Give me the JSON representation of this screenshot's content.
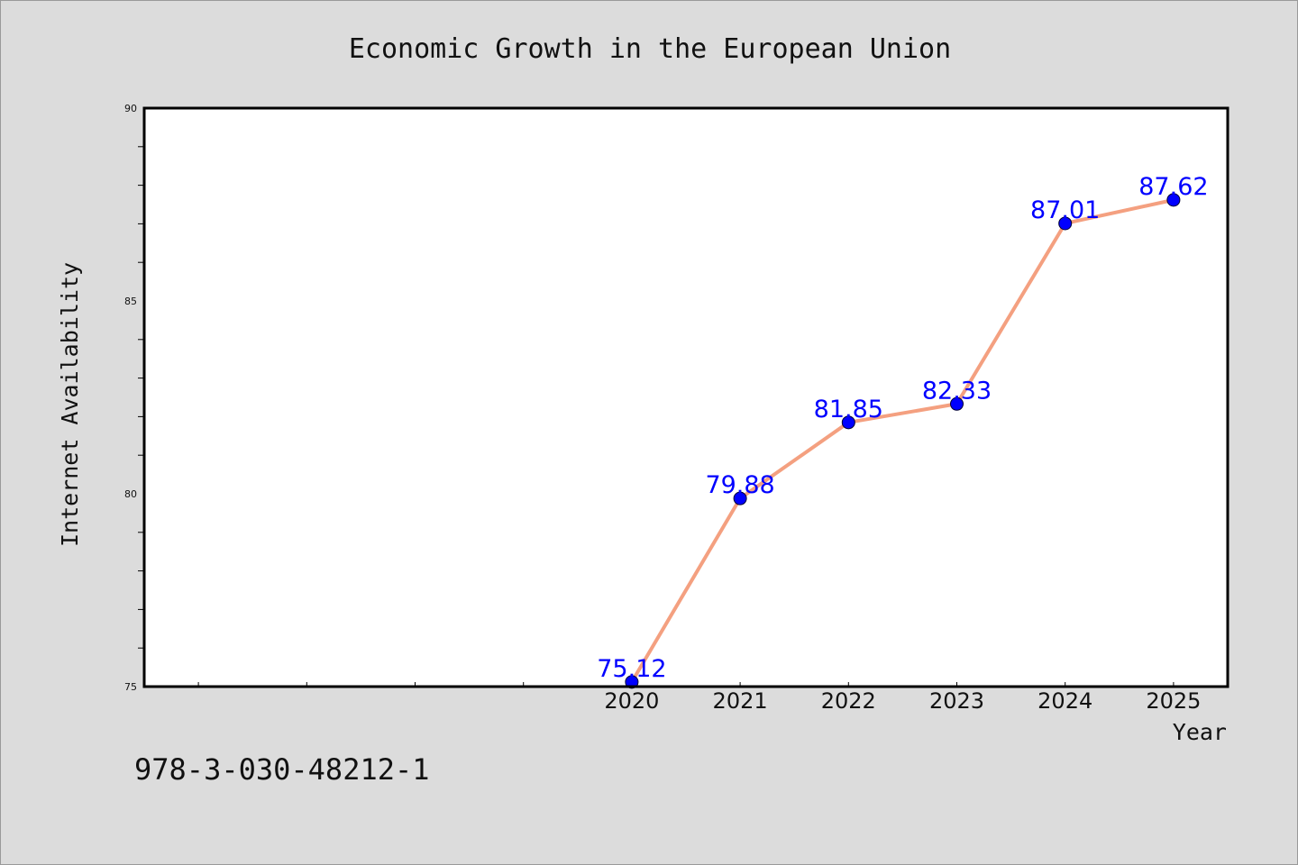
{
  "colors": {
    "background": "#dcdcdc",
    "plot_background": "#ffffff",
    "line": "#f4a080",
    "marker": "#0000ff",
    "data_label": "#0000ff",
    "axis": "#000000"
  },
  "isbn": "978-3-030-48212-1",
  "chart_data": {
    "type": "line",
    "title": "Economic Growth in the European Union",
    "xlabel": "Year",
    "ylabel": "Internet Availability",
    "x": [
      2020,
      2021,
      2022,
      2023,
      2024,
      2025
    ],
    "x_tick_labels": [
      "2020",
      "2021",
      "2022",
      "2023",
      "2024",
      "2025"
    ],
    "xlim": [
      2015.5,
      2025.5
    ],
    "ylim": [
      75,
      90
    ],
    "y_ticks": [
      75,
      80,
      85,
      90
    ],
    "y_minor_step": 1,
    "grid": false,
    "series": [
      {
        "values": [
          75.12,
          79.88,
          81.85,
          82.33,
          87.01,
          87.62
        ],
        "labels": [
          "75.12",
          "79.88",
          "81.85",
          "82.33",
          "87.01",
          "87.62"
        ]
      }
    ]
  }
}
